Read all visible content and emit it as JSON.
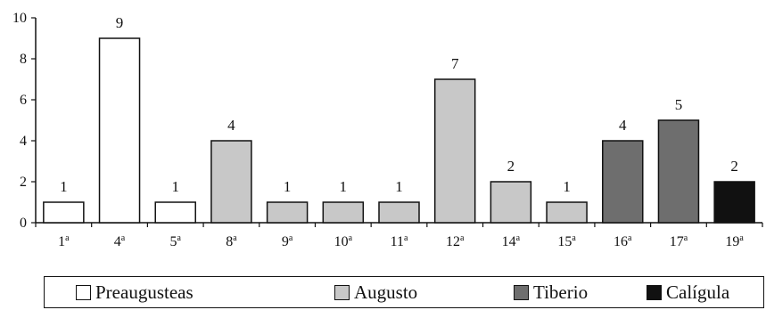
{
  "chart_data": {
    "type": "bar",
    "categories": [
      "1ª",
      "4ª",
      "5ª",
      "8ª",
      "9ª",
      "10ª",
      "11ª",
      "12ª",
      "14ª",
      "15ª",
      "16ª",
      "17ª",
      "19ª"
    ],
    "category_group": [
      "Preaugusteas",
      "Preaugusteas",
      "Preaugusteas",
      "Augusto",
      "Augusto",
      "Augusto",
      "Augusto",
      "Augusto",
      "Augusto",
      "Augusto",
      "Tiberio",
      "Tiberio",
      "Calígula"
    ],
    "values": [
      1,
      9,
      1,
      4,
      1,
      1,
      1,
      7,
      2,
      1,
      4,
      5,
      2
    ],
    "ylim": [
      0,
      10
    ],
    "yticks": [
      0,
      2,
      4,
      6,
      8,
      10
    ],
    "grid": false,
    "legend_position": "bottom",
    "series_legend": [
      {
        "name": "Preaugusteas",
        "color": "#ffffff"
      },
      {
        "name": "Augusto",
        "color": "#c8c8c8"
      },
      {
        "name": "Tiberio",
        "color": "#6e6e6e"
      },
      {
        "name": "Calígula",
        "color": "#111111"
      }
    ]
  }
}
